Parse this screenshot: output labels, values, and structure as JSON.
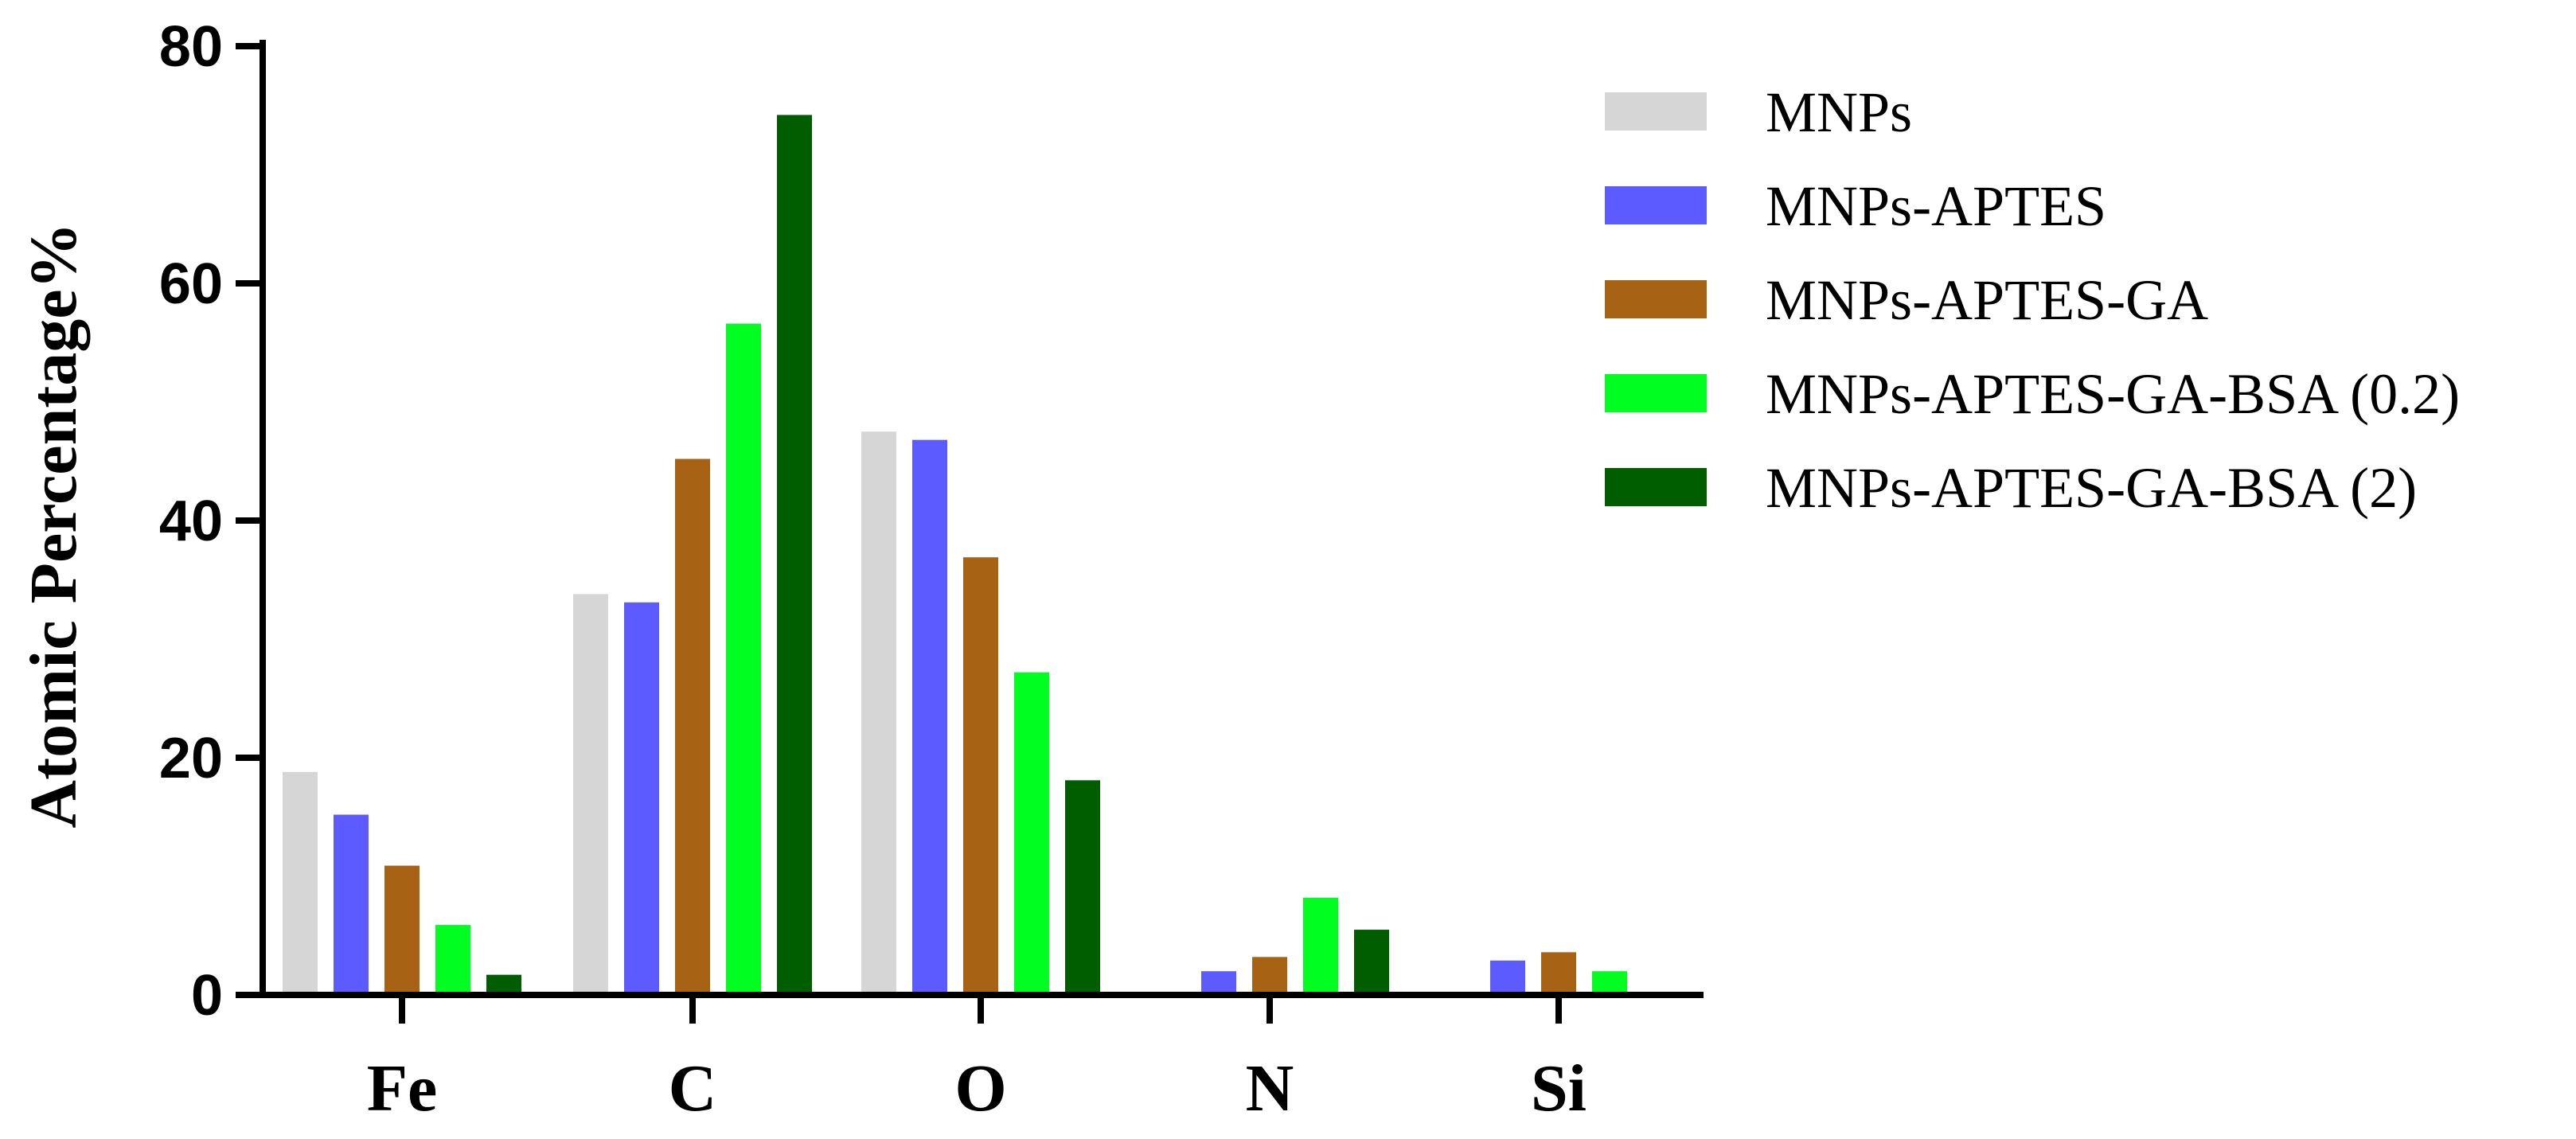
{
  "chart_data": {
    "type": "bar",
    "title": "",
    "xlabel": "",
    "ylabel": "Atomic Percentage%",
    "ylim": [
      0,
      80
    ],
    "yticks": [
      0,
      20,
      40,
      60,
      80
    ],
    "categories": [
      "Fe",
      "C",
      "O",
      "N",
      "Si"
    ],
    "series": [
      {
        "name": "MNPs",
        "color": "#d6d6d6",
        "values": [
          18.8,
          33.8,
          47.5,
          0,
          0
        ]
      },
      {
        "name": "MNPs-APTES",
        "color": "#5b5bff",
        "values": [
          15.2,
          33.1,
          46.8,
          2.0,
          2.9
        ]
      },
      {
        "name": "MNPs-APTES-GA",
        "color": "#a86214",
        "values": [
          10.9,
          45.2,
          36.9,
          3.2,
          3.6
        ]
      },
      {
        "name": "MNPs-APTES-GA-BSA (0.2)",
        "color": "#00ff21",
        "values": [
          5.9,
          56.6,
          27.2,
          8.2,
          2.0
        ]
      },
      {
        "name": "MNPs-APTES-GA-BSA (2)",
        "color": "#005e00",
        "values": [
          1.7,
          74.2,
          18.1,
          5.5,
          0
        ]
      }
    ],
    "grid": false,
    "legend": "right"
  }
}
